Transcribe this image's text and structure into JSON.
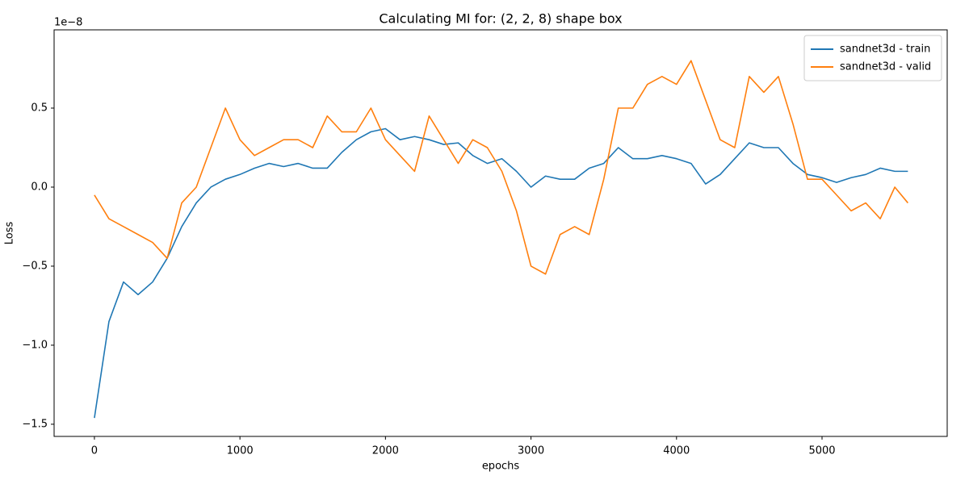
{
  "chart_data": {
    "type": "line",
    "title": "Calculating MI for: (2, 2, 8) shape box",
    "xlabel": "epochs",
    "ylabel": "Loss",
    "y_offset_label": "1e−8",
    "x": [
      0,
      100,
      200,
      300,
      400,
      500,
      600,
      700,
      800,
      900,
      1000,
      1100,
      1200,
      1300,
      1400,
      1500,
      1600,
      1700,
      1800,
      1900,
      2000,
      2100,
      2200,
      2300,
      2400,
      2500,
      2600,
      2700,
      2800,
      2900,
      3000,
      3100,
      3200,
      3300,
      3400,
      3500,
      3600,
      3700,
      3800,
      3900,
      4000,
      4100,
      4200,
      4300,
      4400,
      4500,
      4600,
      4700,
      4800,
      4900,
      5000,
      5100,
      5200,
      5300,
      5400,
      5500,
      5590
    ],
    "series": [
      {
        "name": "sandnet3d - train",
        "color": "#1f77b4",
        "values": [
          -1.46,
          -0.85,
          -0.6,
          -0.68,
          -0.6,
          -0.45,
          -0.25,
          -0.1,
          0.0,
          0.05,
          0.08,
          0.12,
          0.15,
          0.13,
          0.15,
          0.12,
          0.12,
          0.22,
          0.3,
          0.35,
          0.37,
          0.3,
          0.32,
          0.3,
          0.27,
          0.28,
          0.2,
          0.15,
          0.18,
          0.1,
          0.0,
          0.07,
          0.05,
          0.05,
          0.12,
          0.15,
          0.25,
          0.18,
          0.18,
          0.2,
          0.18,
          0.15,
          0.02,
          0.08,
          0.18,
          0.28,
          0.25,
          0.25,
          0.15,
          0.08,
          0.06,
          0.03,
          0.06,
          0.08,
          0.12,
          0.1,
          0.1
        ]
      },
      {
        "name": "sandnet3d - valid",
        "color": "#ff7f0e",
        "values": [
          -0.05,
          -0.2,
          -0.25,
          -0.3,
          -0.35,
          -0.45,
          -0.1,
          0.0,
          0.25,
          0.5,
          0.3,
          0.2,
          0.25,
          0.3,
          0.3,
          0.25,
          0.45,
          0.35,
          0.35,
          0.5,
          0.3,
          0.2,
          0.1,
          0.45,
          0.3,
          0.15,
          0.3,
          0.25,
          0.1,
          -0.15,
          -0.5,
          -0.55,
          -0.3,
          -0.25,
          -0.3,
          0.05,
          0.5,
          0.5,
          0.65,
          0.7,
          0.65,
          0.8,
          0.55,
          0.3,
          0.25,
          0.7,
          0.6,
          0.7,
          0.4,
          0.05,
          0.05,
          -0.05,
          -0.15,
          -0.1,
          -0.2,
          0.0,
          -0.1
        ]
      }
    ],
    "xlim": [
      -277,
      5860
    ],
    "xticks": [
      0,
      1000,
      2000,
      3000,
      4000,
      5000
    ],
    "ylim": [
      -1.577,
      0.995
    ],
    "yticks": [
      {
        "value": -1.5,
        "label": "−1.5"
      },
      {
        "value": -1,
        "label": "−1.0"
      },
      {
        "value": -0.5,
        "label": "−0.5"
      },
      {
        "value": 0,
        "label": "0.0"
      },
      0.5
    ],
    "grid": false,
    "legend": "upper right"
  }
}
